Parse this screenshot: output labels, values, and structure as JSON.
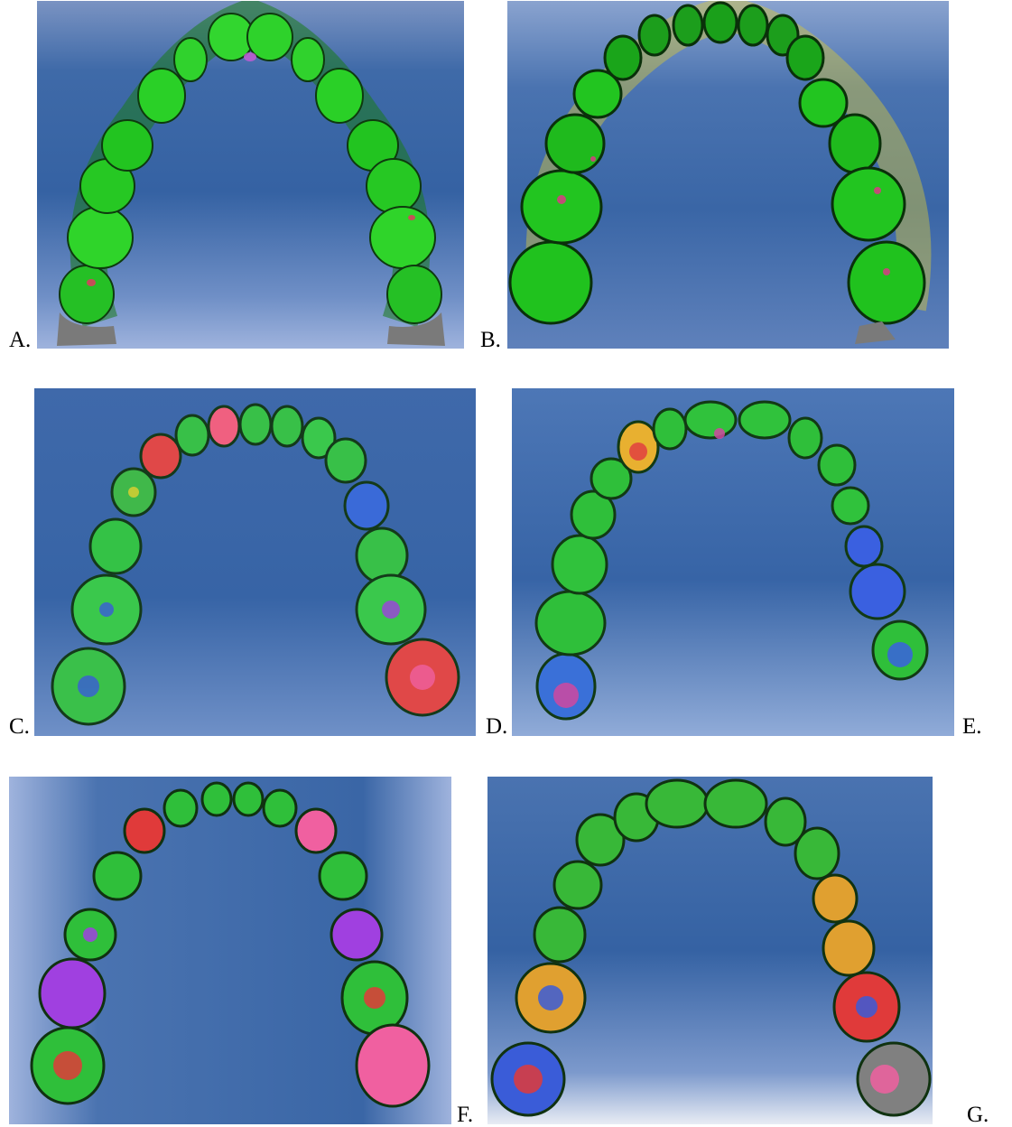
{
  "figure": {
    "panels": [
      {
        "label": "A.",
        "subject": "dental-arch-scan",
        "dominant_colors": [
          "#1fd21c",
          "#2fb02a"
        ],
        "accent_colors": [
          "#c25cd4"
        ]
      },
      {
        "label": "B.",
        "subject": "dental-arch-scan",
        "dominant_colors": [
          "#22c520",
          "#1a9a1a"
        ],
        "accent_colors": [
          "#e0d030",
          "#d04080"
        ]
      },
      {
        "label": "C.",
        "subject": "dental-arch-scan",
        "dominant_colors": [
          "#38c848",
          "#2aa040"
        ],
        "accent_colors": [
          "#e03040",
          "#3a5cd8",
          "#e0d030"
        ]
      },
      {
        "label": "D.",
        "subject": "dental-arch-scan",
        "dominant_colors": [
          "#2fbf3a",
          "#26a838"
        ],
        "accent_colors": [
          "#e8b030",
          "#d048a0",
          "#3a60e0"
        ]
      },
      {
        "label": "E.",
        "subject": "dental-arch-scan-right-side",
        "dominant_colors": [
          "#2fbf3a"
        ],
        "accent_colors": [
          "#3a60e0",
          "#d048a0"
        ]
      },
      {
        "label": "F.",
        "subject": "dental-arch-scan",
        "dominant_colors": [
          "#2fbf3a"
        ],
        "accent_colors": [
          "#a040e0",
          "#e03a3a",
          "#f060a0"
        ]
      },
      {
        "label": "G.",
        "subject": "dental-arch-scan",
        "dominant_colors": [
          "#38b838"
        ],
        "accent_colors": [
          "#e0a030",
          "#e03a3a",
          "#3a5cd8",
          "#808080"
        ]
      }
    ]
  }
}
